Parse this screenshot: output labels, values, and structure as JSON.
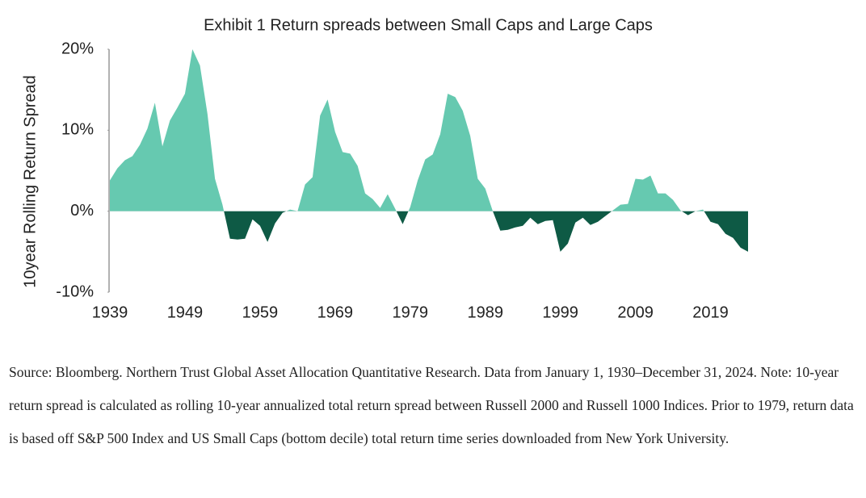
{
  "chart_data": {
    "type": "area",
    "title": "Exhibit 1 Return spreads between Small Caps and Large Caps",
    "ylabel": "10year Rolling Return Spread",
    "x": [
      1939,
      1940,
      1941,
      1942,
      1943,
      1944,
      1945,
      1946,
      1947,
      1948,
      1949,
      1950,
      1951,
      1952,
      1953,
      1954,
      1955,
      1956,
      1957,
      1958,
      1959,
      1960,
      1961,
      1962,
      1963,
      1964,
      1965,
      1966,
      1967,
      1968,
      1969,
      1970,
      1971,
      1972,
      1973,
      1974,
      1975,
      1976,
      1977,
      1978,
      1979,
      1980,
      1981,
      1982,
      1983,
      1984,
      1985,
      1986,
      1987,
      1988,
      1989,
      1990,
      1991,
      1992,
      1993,
      1994,
      1995,
      1996,
      1997,
      1998,
      1999,
      2000,
      2001,
      2002,
      2003,
      2004,
      2005,
      2006,
      2007,
      2008,
      2009,
      2010,
      2011,
      2012,
      2013,
      2014,
      2015,
      2016,
      2017,
      2018,
      2019,
      2020,
      2021,
      2022,
      2023,
      2024
    ],
    "values": [
      3.8,
      5.3,
      6.3,
      6.8,
      8.2,
      10.2,
      13.4,
      8.0,
      11.2,
      12.8,
      14.5,
      20.0,
      18.0,
      12.0,
      4.0,
      0.8,
      -3.4,
      -3.5,
      -3.4,
      -1.0,
      -1.8,
      -3.8,
      -1.5,
      -0.2,
      0.2,
      0.0,
      3.3,
      4.2,
      11.8,
      13.8,
      9.8,
      7.3,
      7.1,
      5.6,
      2.2,
      1.5,
      0.4,
      2.1,
      0.3,
      -1.6,
      0.5,
      3.8,
      6.4,
      7.0,
      9.5,
      14.5,
      14.1,
      12.4,
      9.3,
      4.0,
      2.8,
      0.0,
      -2.4,
      -2.3,
      -2.0,
      -1.8,
      -0.8,
      -1.6,
      -1.2,
      -1.1,
      -5.0,
      -4.0,
      -1.4,
      -0.8,
      -1.7,
      -1.3,
      -0.6,
      0.1,
      0.8,
      0.9,
      4.0,
      3.9,
      4.4,
      2.2,
      2.2,
      1.4,
      0.1,
      -0.5,
      0.0,
      0.2,
      -1.3,
      -1.6,
      -2.8,
      -3.3,
      -4.5,
      -5.0
    ],
    "positive_color": "#66c9b0",
    "negative_color": "#0e5a45",
    "xlim": [
      1939,
      2024
    ],
    "xticks": [
      1939,
      1949,
      1959,
      1969,
      1979,
      1989,
      1999,
      2009,
      2019
    ],
    "ylim": [
      -10,
      20
    ],
    "yticks": [
      {
        "value": -10,
        "label": "-10%"
      },
      {
        "value": 0,
        "label": "0%"
      },
      {
        "value": 10,
        "label": "10%"
      },
      {
        "value": 20,
        "label": "20%"
      }
    ],
    "grid": false
  },
  "note": "Source: Bloomberg. Northern Trust Global Asset Allocation Quantitative Research. Data from January 1, 1930–December 31, 2024. Note: 10-year return spread is calculated as rolling 10-year annualized total return spread between Russell 2000 and Russell 1000 Indices. Prior to 1979, return data is based off S&P 500 Index and US Small Caps (bottom decile) total return time series downloaded from New York University."
}
